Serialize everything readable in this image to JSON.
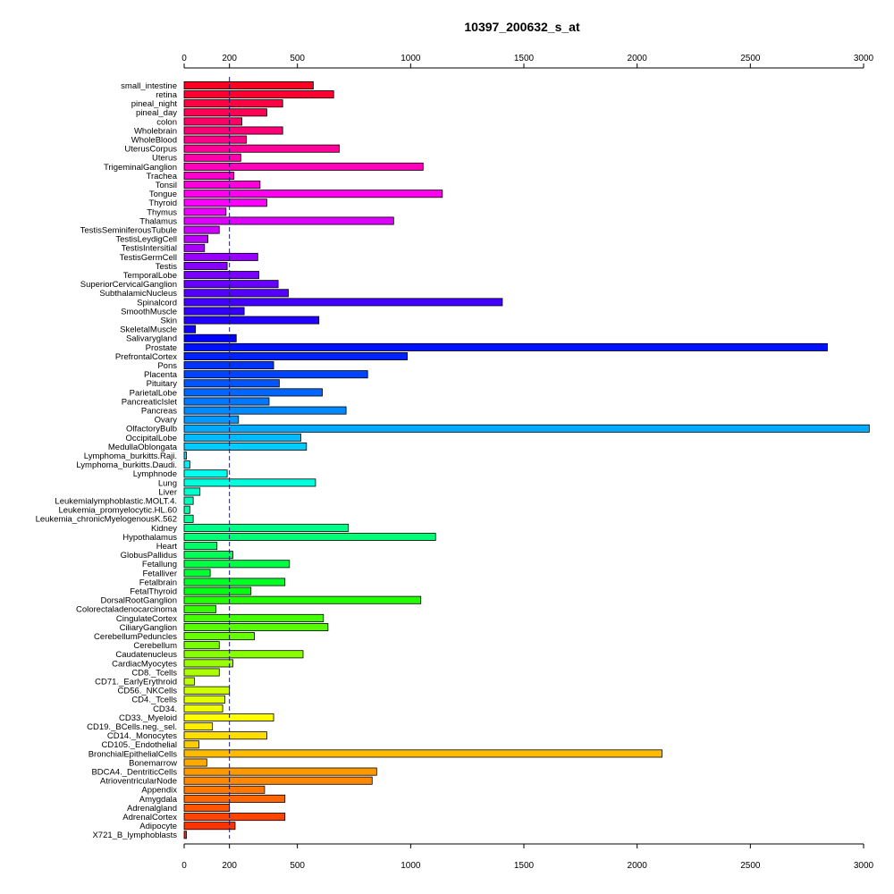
{
  "chart_data": {
    "type": "bar",
    "orientation": "horizontal",
    "title": "10397_200632_s_at",
    "xlabel": "",
    "ylabel": "",
    "xlim": [
      0,
      3000
    ],
    "xticks": [
      0,
      200,
      500,
      1000,
      1500,
      2000,
      2500,
      3000
    ],
    "reference_line": 200,
    "grid": false,
    "legend": "none",
    "categories": [
      "small_intestine",
      "retina",
      "pineal_night",
      "pineal_day",
      "colon",
      "Wholebrain",
      "WholeBlood",
      "UterusCorpus",
      "Uterus",
      "TrigeminalGanglion",
      "Trachea",
      "Tonsil",
      "Tongue",
      "Thyroid",
      "Thymus",
      "Thalamus",
      "TestisSeminiferousTubule",
      "TestisLeydigCell",
      "TestisIntersitial",
      "TestisGermCell",
      "Testis",
      "TemporalLobe",
      "SuperiorCervicalGanglion",
      "SubthalamicNucleus",
      "Spinalcord",
      "SmoothMuscle",
      "Skin",
      "SkeletalMuscle",
      "Salivarygland",
      "Prostate",
      "PrefrontalCortex",
      "Pons",
      "Placenta",
      "Pituitary",
      "ParietalLobe",
      "PancreaticIslet",
      "Pancreas",
      "Ovary",
      "OlfactoryBulb",
      "OccipitalLobe",
      "MedullaOblongata",
      "Lymphoma_burkitts.Raji.",
      "Lymphoma_burkitts.Daudi.",
      "Lymphnode",
      "Lung",
      "Liver",
      "Leukemialymphoblastic.MOLT.4.",
      "Leukemia_promyelocytic.HL.60",
      "Leukemia_chronicMyelogenousK.562",
      "Kidney",
      "Hypothalamus",
      "Heart",
      "GlobusPallidus",
      "Fetallung",
      "Fetalliver",
      "Fetalbrain",
      "FetalThyroid",
      "DorsalRootGanglion",
      "Colorectaladenocarcinoma",
      "CingulateCortex",
      "CiliaryGanglion",
      "CerebellumPeduncles",
      "Cerebellum",
      "Caudatenucleus",
      "CardiacMyocytes",
      "CD8._Tcells",
      "CD71._EarlyErythroid",
      "CD56._NKCells",
      "CD4._Tcells",
      "CD34.",
      "CD33._Myeloid",
      "CD19._BCells.neg._sel.",
      "CD14._Monocytes",
      "CD105._Endothelial",
      "BronchialEpithelialCells",
      "Bonemarrow",
      "BDCA4._DentriticCells",
      "AtrioventricularNode",
      "Appendix",
      "Amygdala",
      "Adrenalgland",
      "AdrenalCortex",
      "Adipocyte",
      "X721_B_lymphoblasts"
    ],
    "values": [
      570,
      660,
      435,
      365,
      255,
      435,
      275,
      685,
      250,
      1055,
      220,
      335,
      1140,
      365,
      185,
      925,
      155,
      105,
      90,
      325,
      190,
      330,
      415,
      460,
      1405,
      265,
      595,
      50,
      230,
      2840,
      985,
      395,
      810,
      420,
      610,
      375,
      715,
      240,
      3025,
      515,
      540,
      10,
      25,
      190,
      580,
      70,
      40,
      25,
      40,
      725,
      1110,
      145,
      215,
      465,
      115,
      445,
      295,
      1045,
      140,
      615,
      635,
      310,
      155,
      525,
      215,
      155,
      45,
      200,
      180,
      170,
      395,
      125,
      365,
      65,
      2110,
      100,
      850,
      830,
      355,
      445,
      200,
      445,
      225,
      10
    ],
    "colors": [
      "#ff0022",
      "#ff0033",
      "#ff0044",
      "#ff0055",
      "#ff0066",
      "#ff0077",
      "#ff0088",
      "#ff0099",
      "#ff00aa",
      "#ff00bb",
      "#ff00cc",
      "#ff00dd",
      "#ff00ee",
      "#ff00ff",
      "#ee00ff",
      "#dd00ff",
      "#cc00ff",
      "#bb00ff",
      "#aa00ff",
      "#9900ff",
      "#8800ff",
      "#7700ff",
      "#6600ff",
      "#5500ff",
      "#4400ff",
      "#3300ff",
      "#2200ff",
      "#1100ff",
      "#0000ff",
      "#0011ff",
      "#0022ff",
      "#0033ff",
      "#0044ff",
      "#0055ff",
      "#0066ff",
      "#0077ff",
      "#0088ff",
      "#0099ff",
      "#00aaff",
      "#00bbff",
      "#00ccff",
      "#00ddff",
      "#00eeff",
      "#00ffee",
      "#00ffdd",
      "#00ffcc",
      "#00ffbb",
      "#00ffaa",
      "#00ff99",
      "#00ff88",
      "#00ff77",
      "#00ff66",
      "#00ff55",
      "#00ff44",
      "#00ff33",
      "#00ff22",
      "#00ff11",
      "#22ff00",
      "#33ff00",
      "#44ff00",
      "#55ff00",
      "#66ff00",
      "#77ff00",
      "#88ff00",
      "#99ff00",
      "#aaff00",
      "#bbff00",
      "#ccff00",
      "#ddff00",
      "#eeff00",
      "#ffff00",
      "#ffee00",
      "#ffdd00",
      "#ffcc00",
      "#ffbb00",
      "#ffaa00",
      "#ff9900",
      "#ff8800",
      "#ff7700",
      "#ff6600",
      "#ff5500",
      "#ff4400",
      "#ff3300",
      "#ff2200"
    ]
  }
}
